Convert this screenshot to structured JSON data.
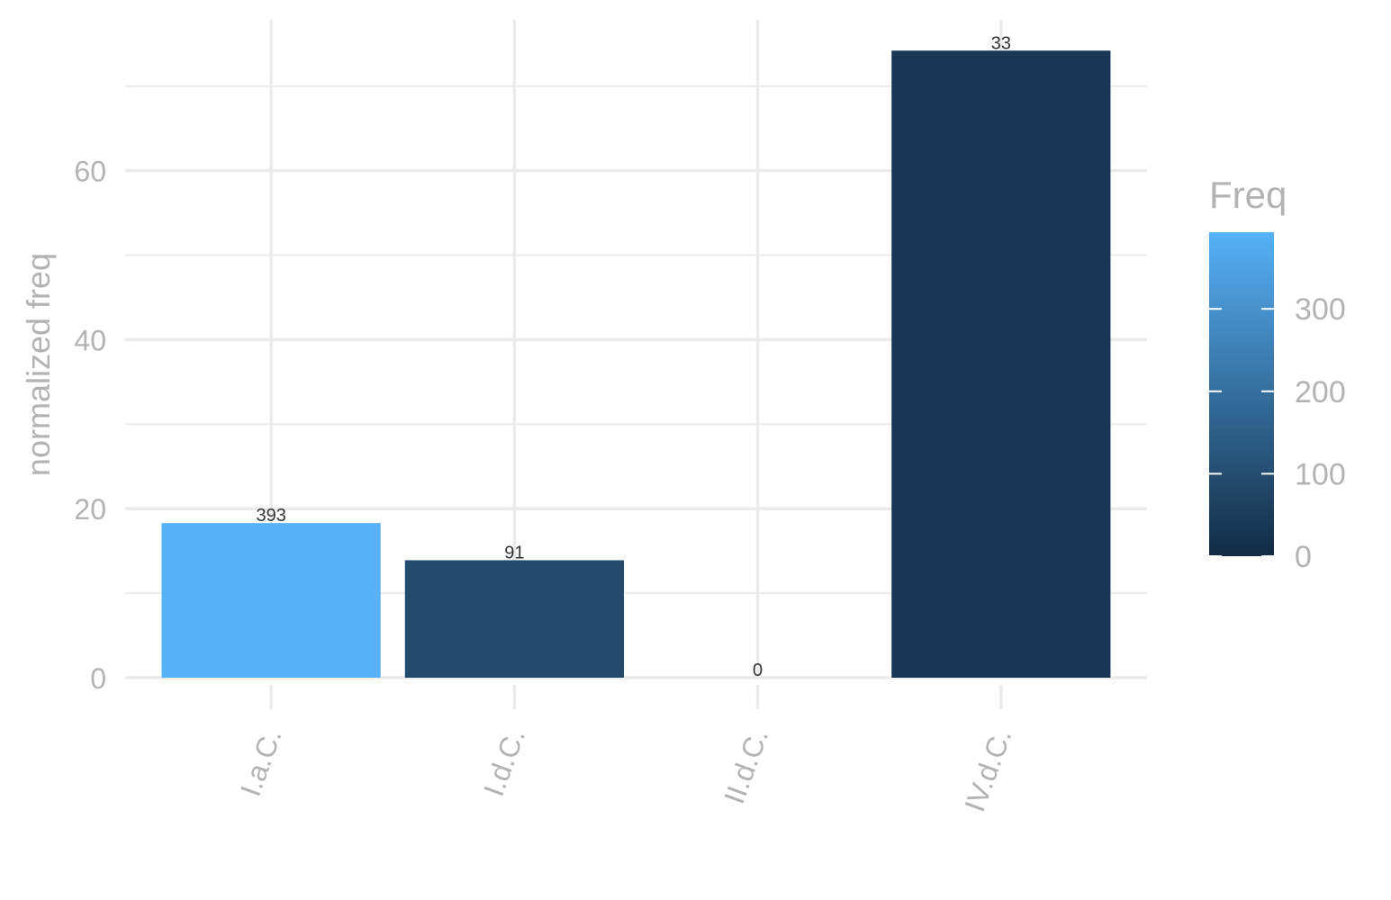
{
  "chart_data": {
    "type": "bar",
    "categories": [
      "I.a.C.",
      "I.d.C.",
      "II.d.C.",
      "IV.d.C."
    ],
    "values": [
      18.3,
      13.9,
      0,
      74.2
    ],
    "fill_values": [
      393,
      91,
      0,
      33
    ],
    "bar_labels": [
      "393",
      "91",
      "0",
      "33"
    ],
    "xlabel": "",
    "ylabel": "normalized freq",
    "ylim": [
      0,
      77.5
    ],
    "yticks": [
      0,
      20,
      40,
      60
    ],
    "yticks_labels": [
      "0",
      "20",
      "40",
      "60"
    ],
    "grid": true,
    "legend": {
      "title": "Freq",
      "placement": "right",
      "range": [
        0,
        393
      ],
      "ticks": [
        0,
        100,
        200,
        300
      ],
      "tick_labels": [
        "0",
        "100",
        "200",
        "300"
      ],
      "color_low": "#132B43",
      "color_high": "#56B1F7"
    }
  }
}
